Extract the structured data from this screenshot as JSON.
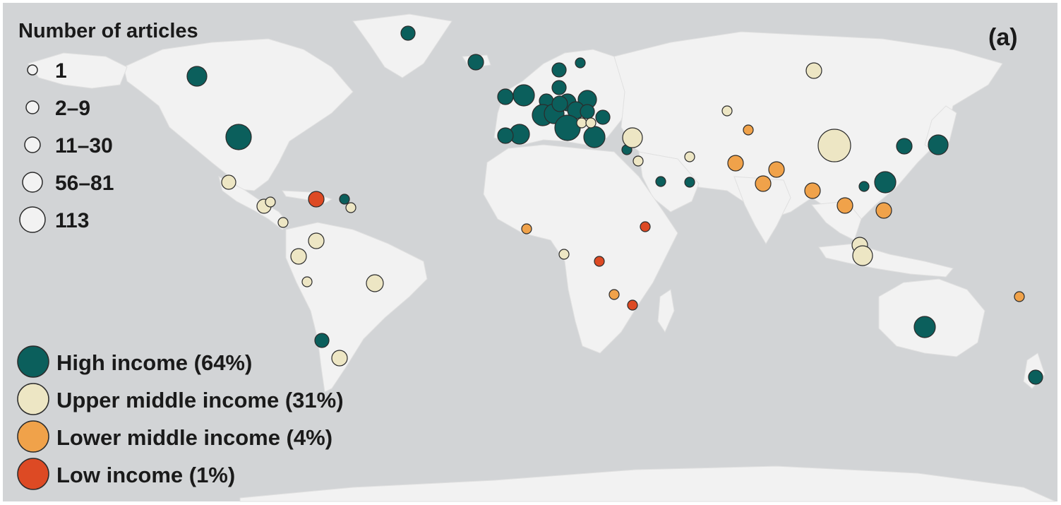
{
  "panel_label": "(a)",
  "size_legend": {
    "title": "Number of articles",
    "items": [
      {
        "label": "1",
        "articles": 1
      },
      {
        "label": "2–9",
        "articles": 5
      },
      {
        "label": "11–30",
        "articles": 20
      },
      {
        "label": "56–81",
        "articles": 68
      },
      {
        "label": "113",
        "articles": 113
      }
    ]
  },
  "income_legend": [
    {
      "key": "high",
      "label": "High income (64%)",
      "color": "#0b5f5c"
    },
    {
      "key": "upper_middle",
      "label": "Upper middle income (31%)",
      "color": "#ede6c4"
    },
    {
      "key": "lower_middle",
      "label": "Lower middle income (4%)",
      "color": "#f0a24a"
    },
    {
      "key": "low",
      "label": "Low income (1%)",
      "color": "#dd4a24"
    }
  ],
  "colors": {
    "ocean": "#d2d4d6",
    "land": "#f2f2f2",
    "marker_stroke": "#2b2b2b",
    "text": "#1a1a1a"
  }
}
